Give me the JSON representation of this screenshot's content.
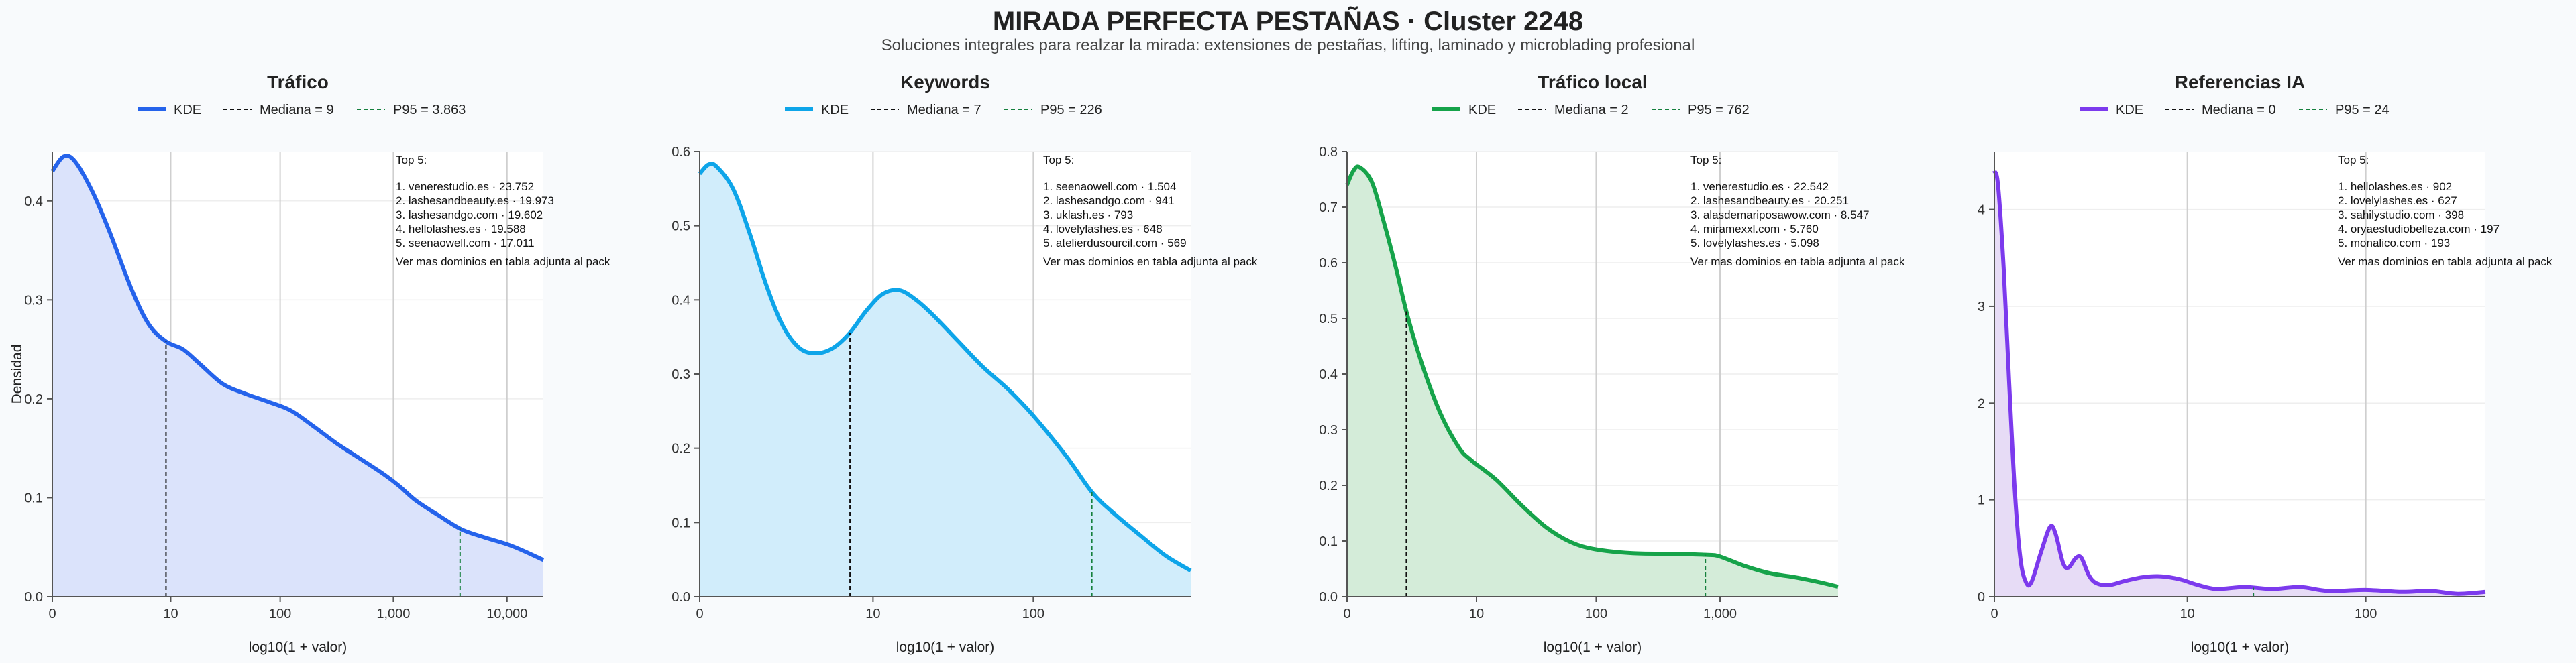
{
  "title": "MIRADA PERFECTA PESTAÑAS · Cluster 2248",
  "subtitle": "Soluciones integrales para realzar la mirada: extensiones de pestañas, lifting, laminado y microblading profesional",
  "chart_data": [
    {
      "type": "area",
      "title": "Tráfico",
      "xlabel": "log10(1 + valor)",
      "ylabel": "Densidad",
      "color": "#2563eb",
      "fill": "#dbe3fb",
      "x_scale": "log10(1+x)",
      "xlim": [
        0,
        4.32
      ],
      "ylim": [
        0,
        0.45
      ],
      "x_ticks": [
        0,
        10,
        100,
        1000,
        10000
      ],
      "x_tick_labels": [
        "0",
        "10",
        "100",
        "1,000",
        "10,000"
      ],
      "y_ticks": [
        0.0,
        0.1,
        0.2,
        0.3,
        0.4
      ],
      "y_tick_labels": [
        "0.0",
        "0.1",
        "0.2",
        "0.3",
        "0.4"
      ],
      "legend": [
        "KDE",
        "Mediana = 9",
        "P95 = 3.863"
      ],
      "median": 9,
      "p95": 3863,
      "top5_title": "Top 5:",
      "top5": [
        "1. venerestudio.es · 23.752",
        "2. lashesandbeauty.es · 19.973",
        "3. lashesandgo.com · 19.602",
        "4. hellolashes.es · 19.588",
        "5. seenaowell.com · 17.011"
      ],
      "note": "Ver mas dominios en tabla adjunta al pack",
      "kde": [
        [
          0,
          0.43
        ],
        [
          0.1,
          0.445
        ],
        [
          0.2,
          0.44
        ],
        [
          0.35,
          0.41
        ],
        [
          0.5,
          0.37
        ],
        [
          0.7,
          0.31
        ],
        [
          0.85,
          0.275
        ],
        [
          1.0,
          0.258
        ],
        [
          1.15,
          0.25
        ],
        [
          1.3,
          0.235
        ],
        [
          1.5,
          0.215
        ],
        [
          1.7,
          0.205
        ],
        [
          1.9,
          0.197
        ],
        [
          2.1,
          0.188
        ],
        [
          2.3,
          0.172
        ],
        [
          2.5,
          0.155
        ],
        [
          2.7,
          0.14
        ],
        [
          2.9,
          0.125
        ],
        [
          3.05,
          0.112
        ],
        [
          3.2,
          0.097
        ],
        [
          3.4,
          0.082
        ],
        [
          3.6,
          0.068
        ],
        [
          3.8,
          0.06
        ],
        [
          4.0,
          0.053
        ],
        [
          4.15,
          0.046
        ],
        [
          4.32,
          0.037
        ]
      ]
    },
    {
      "type": "area",
      "title": "Keywords",
      "xlabel": "log10(1 + valor)",
      "color": "#0ea5e9",
      "fill": "#d1edfb",
      "x_scale": "log10(1+x)",
      "xlim": [
        0,
        2.95
      ],
      "ylim": [
        0,
        0.6
      ],
      "x_ticks": [
        0,
        10,
        100
      ],
      "x_tick_labels": [
        "0",
        "10",
        "100"
      ],
      "y_ticks": [
        0.0,
        0.1,
        0.2,
        0.3,
        0.4,
        0.5,
        0.6
      ],
      "y_tick_labels": [
        "0.0",
        "0.1",
        "0.2",
        "0.3",
        "0.4",
        "0.5",
        "0.6"
      ],
      "legend": [
        "KDE",
        "Mediana = 7",
        "P95 = 226"
      ],
      "median": 7,
      "p95": 226,
      "top5_title": "Top 5:",
      "top5": [
        "1. seenaowell.com · 1.504",
        "2. lashesandgo.com · 941",
        "3. uklash.es · 793",
        "4. lovelylashes.es · 648",
        "5. atelierdusourcil.com · 569"
      ],
      "note": "Ver mas dominios en tabla adjunta al pack",
      "kde": [
        [
          0,
          0.57
        ],
        [
          0.05,
          0.582
        ],
        [
          0.1,
          0.58
        ],
        [
          0.2,
          0.55
        ],
        [
          0.3,
          0.49
        ],
        [
          0.4,
          0.42
        ],
        [
          0.5,
          0.365
        ],
        [
          0.6,
          0.335
        ],
        [
          0.7,
          0.328
        ],
        [
          0.8,
          0.335
        ],
        [
          0.9,
          0.355
        ],
        [
          1.0,
          0.385
        ],
        [
          1.1,
          0.408
        ],
        [
          1.2,
          0.413
        ],
        [
          1.3,
          0.4
        ],
        [
          1.4,
          0.38
        ],
        [
          1.55,
          0.345
        ],
        [
          1.7,
          0.31
        ],
        [
          1.85,
          0.28
        ],
        [
          2.0,
          0.245
        ],
        [
          2.2,
          0.19
        ],
        [
          2.36,
          0.14
        ],
        [
          2.5,
          0.11
        ],
        [
          2.65,
          0.082
        ],
        [
          2.8,
          0.055
        ],
        [
          2.95,
          0.035
        ]
      ]
    },
    {
      "type": "area",
      "title": "Tráfico local",
      "xlabel": "log10(1 + valor)",
      "color": "#16a34a",
      "fill": "#d4ecd9",
      "x_scale": "log10(1+x)",
      "xlim": [
        0,
        3.95
      ],
      "ylim": [
        0,
        0.8
      ],
      "x_ticks": [
        0,
        10,
        100,
        1000
      ],
      "x_tick_labels": [
        "0",
        "10",
        "100",
        "1,000"
      ],
      "y_ticks": [
        0.0,
        0.1,
        0.2,
        0.3,
        0.4,
        0.5,
        0.6,
        0.7,
        0.8
      ],
      "y_tick_labels": [
        "0.0",
        "0.1",
        "0.2",
        "0.3",
        "0.4",
        "0.5",
        "0.6",
        "0.7",
        "0.8"
      ],
      "legend": [
        "KDE",
        "Mediana = 2",
        "P95 = 762"
      ],
      "median": 2,
      "p95": 762,
      "top5_title": "Top 5:",
      "top5": [
        "1. venerestudio.es · 22.542",
        "2. lashesandbeauty.es · 20.251",
        "3. alasdemariposawow.com · 8.547",
        "4. miramexxl.com · 5.760",
        "5. lovelylashes.es · 5.098"
      ],
      "note": "Ver mas dominios en tabla adjunta al pack",
      "kde": [
        [
          0,
          0.74
        ],
        [
          0.05,
          0.765
        ],
        [
          0.1,
          0.772
        ],
        [
          0.2,
          0.745
        ],
        [
          0.3,
          0.67
        ],
        [
          0.4,
          0.585
        ],
        [
          0.48,
          0.51
        ],
        [
          0.6,
          0.42
        ],
        [
          0.75,
          0.33
        ],
        [
          0.9,
          0.268
        ],
        [
          1.0,
          0.245
        ],
        [
          1.2,
          0.21
        ],
        [
          1.4,
          0.165
        ],
        [
          1.6,
          0.125
        ],
        [
          1.8,
          0.098
        ],
        [
          2.0,
          0.085
        ],
        [
          2.3,
          0.078
        ],
        [
          2.6,
          0.077
        ],
        [
          2.9,
          0.075
        ],
        [
          3.0,
          0.072
        ],
        [
          3.2,
          0.055
        ],
        [
          3.4,
          0.042
        ],
        [
          3.6,
          0.035
        ],
        [
          3.8,
          0.026
        ],
        [
          3.95,
          0.018
        ]
      ]
    },
    {
      "type": "area",
      "title": "Referencias IA",
      "xlabel": "log10(1 + valor)",
      "color": "#7c3aed",
      "fill": "#e7dcf6",
      "x_scale": "log10(1+x)",
      "xlim": [
        0,
        2.65
      ],
      "ylim": [
        0,
        4.6
      ],
      "x_ticks": [
        0,
        10,
        100
      ],
      "x_tick_labels": [
        "0",
        "10",
        "100"
      ],
      "y_ticks": [
        0,
        1,
        2,
        3,
        4
      ],
      "y_tick_labels": [
        "0",
        "1",
        "2",
        "3",
        "4"
      ],
      "legend": [
        "KDE",
        "Mediana = 0",
        "P95 = 24"
      ],
      "median": 0,
      "p95": 24,
      "top5_title": "Top 5:",
      "top5": [
        "1. hellolashes.es · 902",
        "2. lovelylashes.es · 627",
        "3. sahilystudio.com · 398",
        "4. oryaestudiobelleza.com · 197",
        "5. monalico.com · 193"
      ],
      "note": "Ver mas dominios en tabla adjunta al pack",
      "kde": [
        [
          0,
          4.4
        ],
        [
          0.02,
          4.25
        ],
        [
          0.05,
          3.4
        ],
        [
          0.08,
          2.2
        ],
        [
          0.11,
          1.1
        ],
        [
          0.14,
          0.4
        ],
        [
          0.17,
          0.15
        ],
        [
          0.2,
          0.15
        ],
        [
          0.25,
          0.45
        ],
        [
          0.3,
          0.72
        ],
        [
          0.33,
          0.65
        ],
        [
          0.37,
          0.35
        ],
        [
          0.4,
          0.3
        ],
        [
          0.44,
          0.4
        ],
        [
          0.47,
          0.4
        ],
        [
          0.51,
          0.22
        ],
        [
          0.55,
          0.14
        ],
        [
          0.62,
          0.12
        ],
        [
          0.7,
          0.16
        ],
        [
          0.8,
          0.2
        ],
        [
          0.9,
          0.21
        ],
        [
          1.0,
          0.18
        ],
        [
          1.1,
          0.12
        ],
        [
          1.2,
          0.08
        ],
        [
          1.35,
          0.1
        ],
        [
          1.5,
          0.08
        ],
        [
          1.65,
          0.1
        ],
        [
          1.8,
          0.06
        ],
        [
          2.0,
          0.07
        ],
        [
          2.2,
          0.05
        ],
        [
          2.35,
          0.06
        ],
        [
          2.5,
          0.03
        ],
        [
          2.65,
          0.05
        ]
      ]
    }
  ]
}
